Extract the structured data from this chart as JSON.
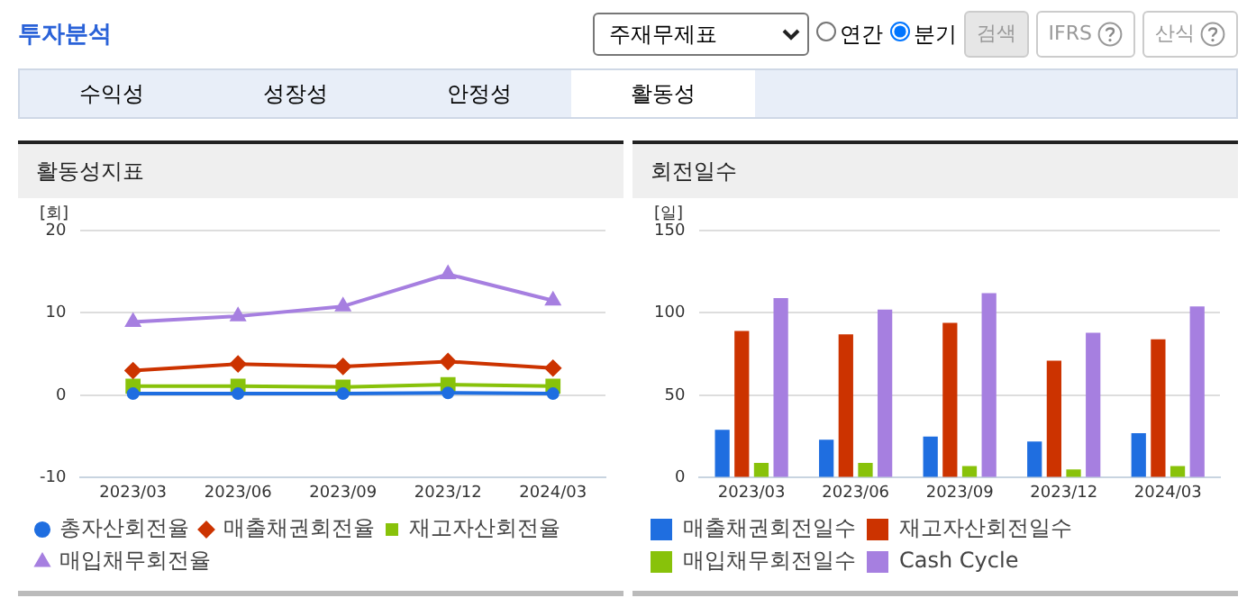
{
  "chart_data": [
    {
      "type": "other",
      "title": "투자분석",
      "annotations": [
        "주재무제표",
        "연간",
        "분기",
        "검색",
        "IFRS",
        "산식",
        "수익성",
        "성장성",
        "안정성",
        "활동성"
      ]
    },
    {
      "type": "line",
      "title": "활동성지표",
      "ylabel": "[회]",
      "categories": [
        "2023/03",
        "2023/06",
        "2023/09",
        "2023/12",
        "2024/03"
      ],
      "series": [
        {
          "name": "총자산회전율",
          "color": "#1f6ee0",
          "marker": "circle",
          "values": [
            0.2,
            0.2,
            0.2,
            0.3,
            0.2
          ]
        },
        {
          "name": "매출채권회전율",
          "color": "#cc3300",
          "marker": "diamond",
          "values": [
            3.0,
            3.8,
            3.5,
            4.1,
            3.3
          ]
        },
        {
          "name": "재고자산회전율",
          "color": "#88c20a",
          "marker": "square",
          "values": [
            1.1,
            1.1,
            1.0,
            1.3,
            1.1
          ]
        },
        {
          "name": "매입채무회전율",
          "color": "#a67fe0",
          "marker": "triangle",
          "values": [
            8.9,
            9.6,
            10.8,
            14.7,
            11.5
          ]
        }
      ],
      "ylim": [
        -10,
        20
      ],
      "yticks": [
        -10,
        0,
        10,
        20
      ],
      "grid": "y",
      "legend": "bottom",
      "line_style": "solid"
    },
    {
      "type": "bar",
      "title": "회전일수",
      "ylabel": "[일]",
      "categories": [
        "2023/03",
        "2023/06",
        "2023/09",
        "2023/12",
        "2024/03"
      ],
      "series": [
        {
          "name": "매출채권회전일수",
          "color": "#1f6ee0",
          "values": [
            29,
            23,
            25,
            22,
            27
          ]
        },
        {
          "name": "재고자산회전일수",
          "color": "#cc3300",
          "values": [
            89,
            87,
            94,
            71,
            84
          ]
        },
        {
          "name": "매입채무회전일수",
          "color": "#88c20a",
          "values": [
            9,
            9,
            7,
            5,
            7
          ]
        },
        {
          "name": "Cash Cycle",
          "color": "#a67fe0",
          "values": [
            109,
            102,
            112,
            88,
            104
          ]
        }
      ],
      "ylim": [
        0,
        150
      ],
      "yticks": [
        0,
        50,
        100,
        150
      ],
      "grid": "y",
      "legend": "bottom"
    }
  ]
}
